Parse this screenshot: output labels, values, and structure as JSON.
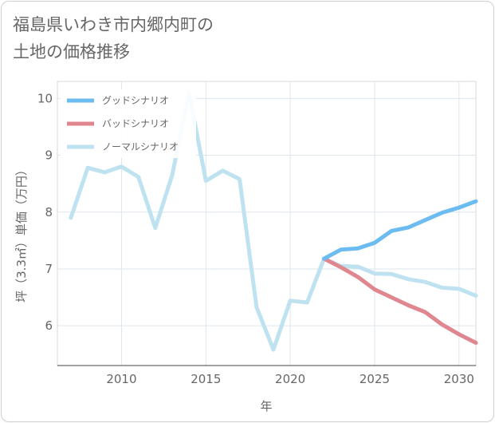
{
  "chart_data": {
    "type": "line",
    "title_lines": [
      "福島県いわき市内郷内町の",
      "土地の価格推移"
    ],
    "xlabel": "年",
    "ylabel": "坪（3.3㎡）単価（万円）",
    "xlim": [
      2006.2,
      2031
    ],
    "ylim": [
      5.3,
      10.3
    ],
    "x_ticks": [
      2010,
      2015,
      2020,
      2025,
      2030
    ],
    "x_tick_labels": [
      "2010",
      "2015",
      "2020",
      "2025",
      "2030"
    ],
    "y_ticks": [
      6,
      7,
      8,
      9,
      10
    ],
    "y_tick_labels": [
      "6",
      "7",
      "8",
      "9",
      "10"
    ],
    "grid": true,
    "legend_position": "top-left",
    "series": [
      {
        "name": "グッドシナリオ",
        "color": "#6cbcf2",
        "x": [
          2022,
          2023,
          2024,
          2025,
          2026,
          2027,
          2028,
          2029,
          2030,
          2031
        ],
        "y": [
          7.18,
          7.34,
          7.36,
          7.46,
          7.67,
          7.73,
          7.86,
          7.99,
          8.08,
          8.19
        ]
      },
      {
        "name": "バッドシナリオ",
        "color": "#e0868f",
        "x": [
          2022,
          2023,
          2024,
          2025,
          2026,
          2027,
          2028,
          2029,
          2030,
          2031
        ],
        "y": [
          7.18,
          7.03,
          6.86,
          6.64,
          6.5,
          6.36,
          6.24,
          6.02,
          5.85,
          5.7
        ]
      },
      {
        "name": "ノーマルシナリオ",
        "color": "#bfe2f0",
        "x": [
          2007,
          2008,
          2009,
          2010,
          2011,
          2012,
          2013,
          2014,
          2015,
          2016,
          2017,
          2018,
          2019,
          2020,
          2021,
          2022,
          2023,
          2024,
          2025,
          2026,
          2027,
          2028,
          2029,
          2030,
          2031
        ],
        "y": [
          7.9,
          8.78,
          8.7,
          8.8,
          8.62,
          7.72,
          8.65,
          10.1,
          8.55,
          8.73,
          8.58,
          6.33,
          5.58,
          6.44,
          6.41,
          7.18,
          7.05,
          7.04,
          6.92,
          6.91,
          6.82,
          6.77,
          6.67,
          6.65,
          6.53
        ]
      }
    ]
  }
}
